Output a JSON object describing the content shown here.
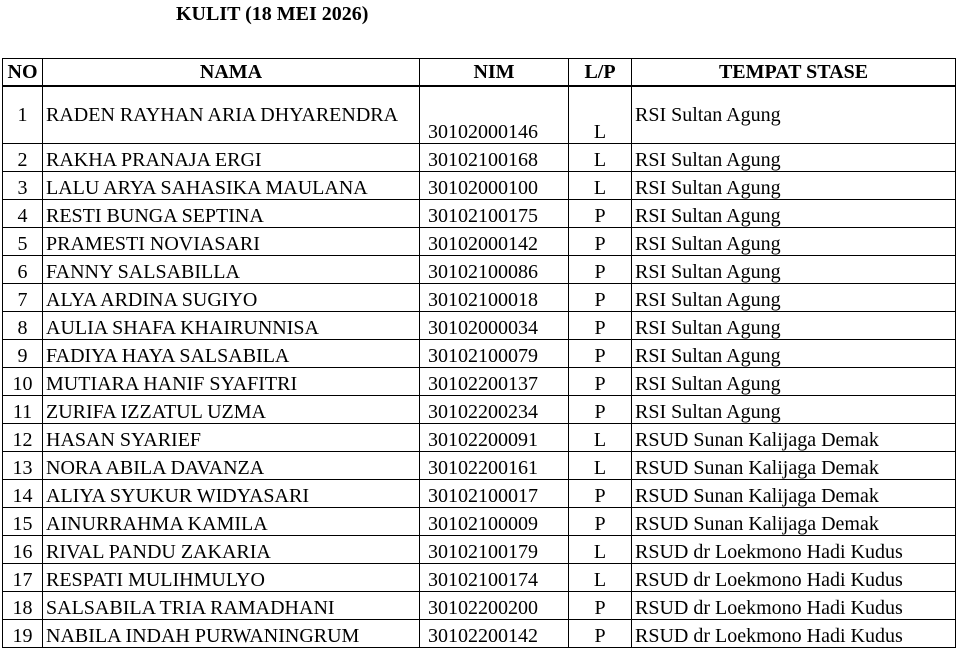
{
  "title": "KULIT (18 MEI 2026)",
  "table": {
    "headers": [
      "NO",
      "NAMA",
      "NIM",
      "L/P",
      "TEMPAT STASE"
    ],
    "rows": [
      [
        1,
        "RADEN RAYHAN ARIA DHYARENDRA",
        "30102000146",
        "L",
        "RSI Sultan Agung"
      ],
      [
        2,
        "RAKHA PRANAJA ERGI",
        "30102100168",
        "L",
        "RSI Sultan Agung"
      ],
      [
        3,
        "LALU ARYA SAHASIKA MAULANA",
        "30102000100",
        "L",
        "RSI Sultan Agung"
      ],
      [
        4,
        "RESTI BUNGA SEPTINA",
        "30102100175",
        "P",
        "RSI Sultan Agung"
      ],
      [
        5,
        "PRAMESTI NOVIASARI",
        "30102000142",
        "P",
        "RSI Sultan Agung"
      ],
      [
        6,
        "FANNY SALSABILLA",
        "30102100086",
        "P",
        "RSI Sultan Agung"
      ],
      [
        7,
        "ALYA ARDINA SUGIYO",
        "30102100018",
        "P",
        "RSI Sultan Agung"
      ],
      [
        8,
        "AULIA SHAFA KHAIRUNNISA",
        "30102000034",
        "P",
        "RSI Sultan Agung"
      ],
      [
        9,
        "FADIYA HAYA SALSABILA",
        "30102100079",
        "P",
        "RSI Sultan Agung"
      ],
      [
        10,
        "MUTIARA HANIF SYAFITRI",
        "30102200137",
        "P",
        "RSI Sultan Agung"
      ],
      [
        11,
        "ZURIFA IZZATUL UZMA",
        "30102200234",
        "P",
        "RSI Sultan Agung"
      ],
      [
        12,
        "HASAN SYARIEF",
        "30102200091",
        "L",
        "RSUD Sunan Kalijaga Demak"
      ],
      [
        13,
        "NORA ABILA DAVANZA",
        "30102200161",
        "L",
        "RSUD Sunan Kalijaga Demak"
      ],
      [
        14,
        "ALIYA SYUKUR WIDYASARI",
        "30102100017",
        "P",
        "RSUD Sunan Kalijaga Demak"
      ],
      [
        15,
        "AINURRAHMA KAMILA",
        "30102100009",
        "P",
        "RSUD Sunan Kalijaga Demak"
      ],
      [
        16,
        "RIVAL PANDU ZAKARIA",
        "30102100179",
        "L",
        "RSUD dr Loekmono Hadi Kudus"
      ],
      [
        17,
        "RESPATI MULIHMULYO",
        "30102100174",
        "L",
        "RSUD dr Loekmono Hadi Kudus"
      ],
      [
        18,
        "SALSABILA TRIA RAMADHANI",
        "30102200200",
        "P",
        "RSUD dr Loekmono Hadi Kudus"
      ],
      [
        19,
        "NABILA INDAH PURWANINGRUM",
        "30102200142",
        "P",
        "RSUD dr Loekmono Hadi Kudus"
      ]
    ]
  }
}
